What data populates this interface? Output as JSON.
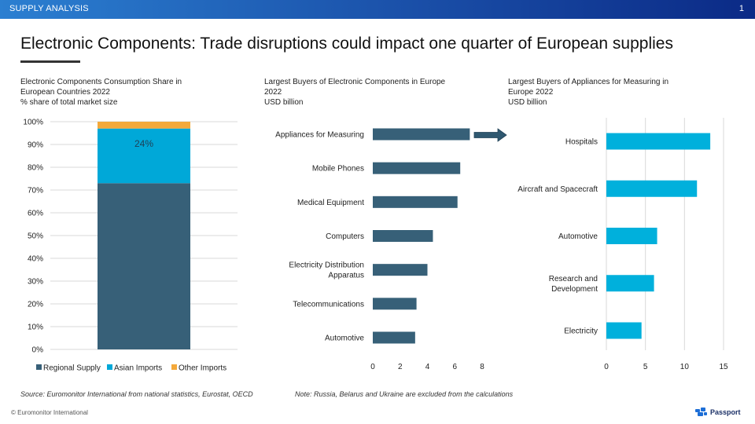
{
  "header": {
    "section": "SUPPLY ANALYSIS",
    "page_number": "1"
  },
  "title": "Electronic Components: Trade disruptions could impact one quarter of European supplies",
  "left_chart_header": {
    "line1": "Electronic Components  Consumption Share in",
    "line2": "European Countries 2022",
    "line3": "% share of total market size"
  },
  "middle_chart_header": {
    "line1": "Largest Buyers of Electronic Components  in Europe",
    "line2": "2022",
    "line3": "USD billion"
  },
  "right_chart_header": {
    "line1": "Largest Buyers of Appliances for Measuring in",
    "line2": "Europe 2022",
    "line3": "USD billion"
  },
  "colors": {
    "regional": "#376078",
    "asian": "#00a8d8",
    "other": "#f4a93a",
    "bar_dark": "#376078",
    "bar_light": "#00b0dc",
    "grid": "#d9d9d9",
    "arrow": "#2f5870",
    "header_bar": "#1a4fa8"
  },
  "chart_data": [
    {
      "type": "bar",
      "stacked": true,
      "orientation": "vertical",
      "categories": [
        ""
      ],
      "series": [
        {
          "name": "Regional Supply",
          "values": [
            73
          ]
        },
        {
          "name": "Asian Imports",
          "values": [
            24
          ]
        },
        {
          "name": "Other Imports",
          "values": [
            3
          ]
        }
      ],
      "ylim": [
        0,
        100
      ],
      "yticks": [
        "0%",
        "10%",
        "20%",
        "30%",
        "40%",
        "50%",
        "60%",
        "70%",
        "80%",
        "90%",
        "100%"
      ],
      "annotations": [
        {
          "text": "24%"
        }
      ],
      "grid": true,
      "legend_position": "bottom"
    },
    {
      "type": "bar",
      "orientation": "horizontal",
      "categories": [
        "Appliances for Measuring",
        "Mobile Phones",
        "Medical Equipment",
        "Computers",
        "Electricity Distribution Apparatus",
        "Telecommunications",
        "Automotive"
      ],
      "category_label_lines": [
        [
          "Appliances for Measuring"
        ],
        [
          "Mobile Phones"
        ],
        [
          "Medical Equipment"
        ],
        [
          "Computers"
        ],
        [
          "Electricity Distribution",
          "Apparatus"
        ],
        [
          "Telecommunications"
        ],
        [
          "Automotive"
        ]
      ],
      "values": [
        7.1,
        6.4,
        6.2,
        4.4,
        4.0,
        3.2,
        3.1
      ],
      "xlim": [
        0,
        8
      ],
      "xticks": [
        "0",
        "2",
        "4",
        "6",
        "8"
      ],
      "grid": false
    },
    {
      "type": "bar",
      "orientation": "horizontal",
      "categories": [
        "Hospitals",
        "Aircraft and Spacecraft",
        "Automotive",
        "Research and Development",
        "Electricity"
      ],
      "category_label_lines": [
        [
          "Hospitals"
        ],
        [
          "Aircraft and Spacecraft"
        ],
        [
          "Automotive"
        ],
        [
          "Research and",
          "Development"
        ],
        [
          "Electricity"
        ]
      ],
      "values": [
        13.3,
        11.6,
        6.5,
        6.1,
        4.5
      ],
      "xlim": [
        0,
        15
      ],
      "xticks": [
        "0",
        "5",
        "10",
        "15"
      ],
      "grid": true
    }
  ],
  "footer": {
    "source": "Source: Euromonitor International from national statistics, Eurostat, OECD",
    "note": "Note: Russia, Belarus and Ukraine are excluded from the calculations",
    "copyright": "© Euromonitor  International",
    "brand": "Passport"
  }
}
